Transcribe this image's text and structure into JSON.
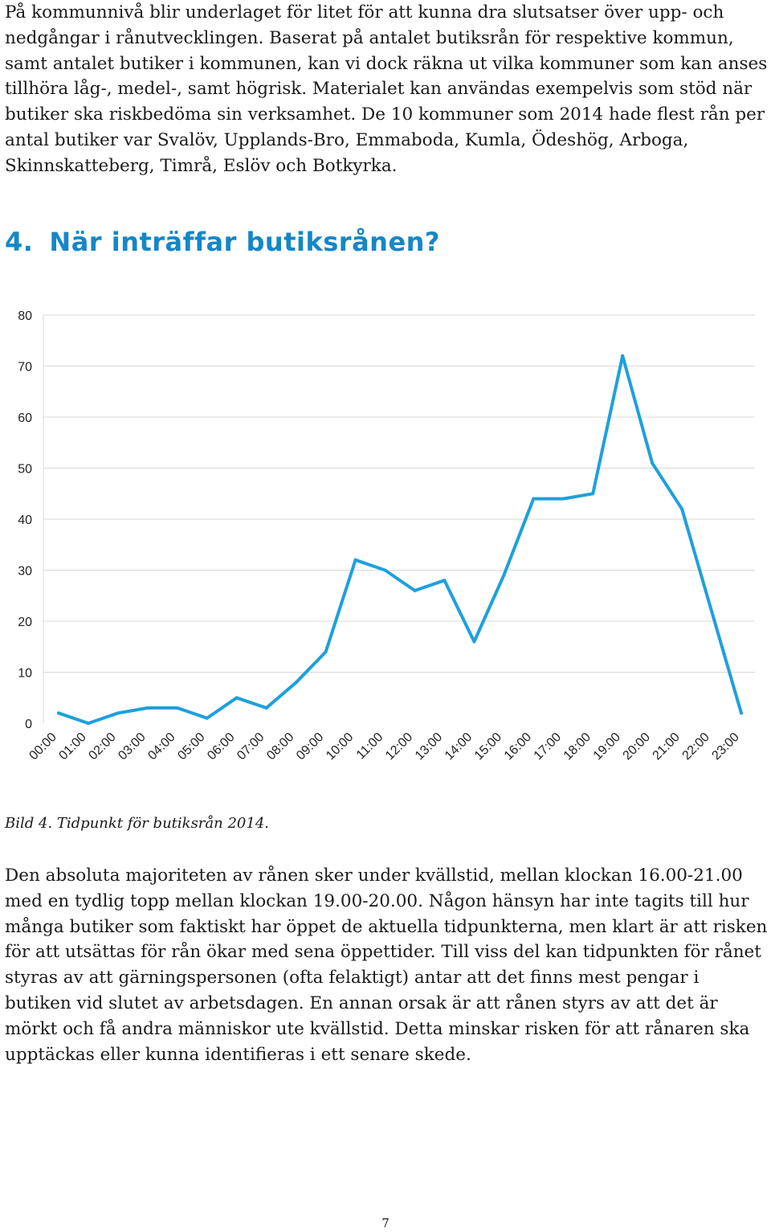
{
  "paragraphs": {
    "intro": "På kommunnivå blir underlaget för litet för att kunna dra slutsatser över upp- och nedgångar i rånutvecklingen. Baserat på antalet butiksrån för respektive kommun, samt antalet butiker i kommunen, kan vi dock räkna ut vilka kommuner som kan anses tillhöra låg-, medel-, samt högrisk. Materialet kan användas exempelvis som stöd när butiker ska riskbedöma sin verksamhet. De 10 kommuner som 2014 hade flest rån per antal butiker var Svalöv, Upplands-Bro, Emmaboda, Kumla, Ödeshög, Arboga, Skinnskatteberg, Timrå, Eslöv och Botkyrka.",
    "conclusion": "Den absoluta majoriteten av rånen sker under kvällstid, mellan klockan 16.00-21.00 med en tydlig topp mellan klockan 19.00-20.00. Någon hänsyn har inte tagits till hur många butiker som faktiskt har öppet de aktuella tidpunkterna, men klart är att risken för att utsättas för rån ökar med sena öppettider. Till viss del kan tidpunkten för rånet styras av att gärningspersonen (ofta felaktigt) antar att det finns mest pengar i butiken vid slutet av arbetsdagen. En annan orsak är att rånen styrs av att det är mörkt och få andra människor ute kvällstid. Detta minskar risken för att rånaren ska upptäckas eller kunna identifieras i ett senare skede."
  },
  "section": {
    "number": "4.",
    "title": "När inträffar butiksrånen?"
  },
  "figure": {
    "caption": "Bild 4. Tidpunkt för butiksrån 2014."
  },
  "page_number": "7",
  "chart_data": {
    "type": "line",
    "title": "",
    "xlabel": "",
    "ylabel": "",
    "categories": [
      "00:00",
      "01:00",
      "02:00",
      "03:00",
      "04:00",
      "05:00",
      "06:00",
      "07:00",
      "08:00",
      "09:00",
      "10:00",
      "11:00",
      "12:00",
      "13:00",
      "14:00",
      "15:00",
      "16:00",
      "17:00",
      "18:00",
      "19:00",
      "20:00",
      "21:00",
      "22:00",
      "23:00"
    ],
    "values": [
      2,
      0,
      2,
      3,
      3,
      1,
      5,
      3,
      8,
      14,
      32,
      30,
      26,
      28,
      16,
      29,
      44,
      44,
      45,
      72,
      51,
      42,
      22,
      2
    ],
    "ylim": [
      0,
      80
    ],
    "yticks": [
      0,
      10,
      20,
      30,
      40,
      50,
      60,
      70,
      80
    ],
    "grid": true,
    "line_color": "#1ea0dc",
    "grid_color": "#d9d9d9"
  }
}
